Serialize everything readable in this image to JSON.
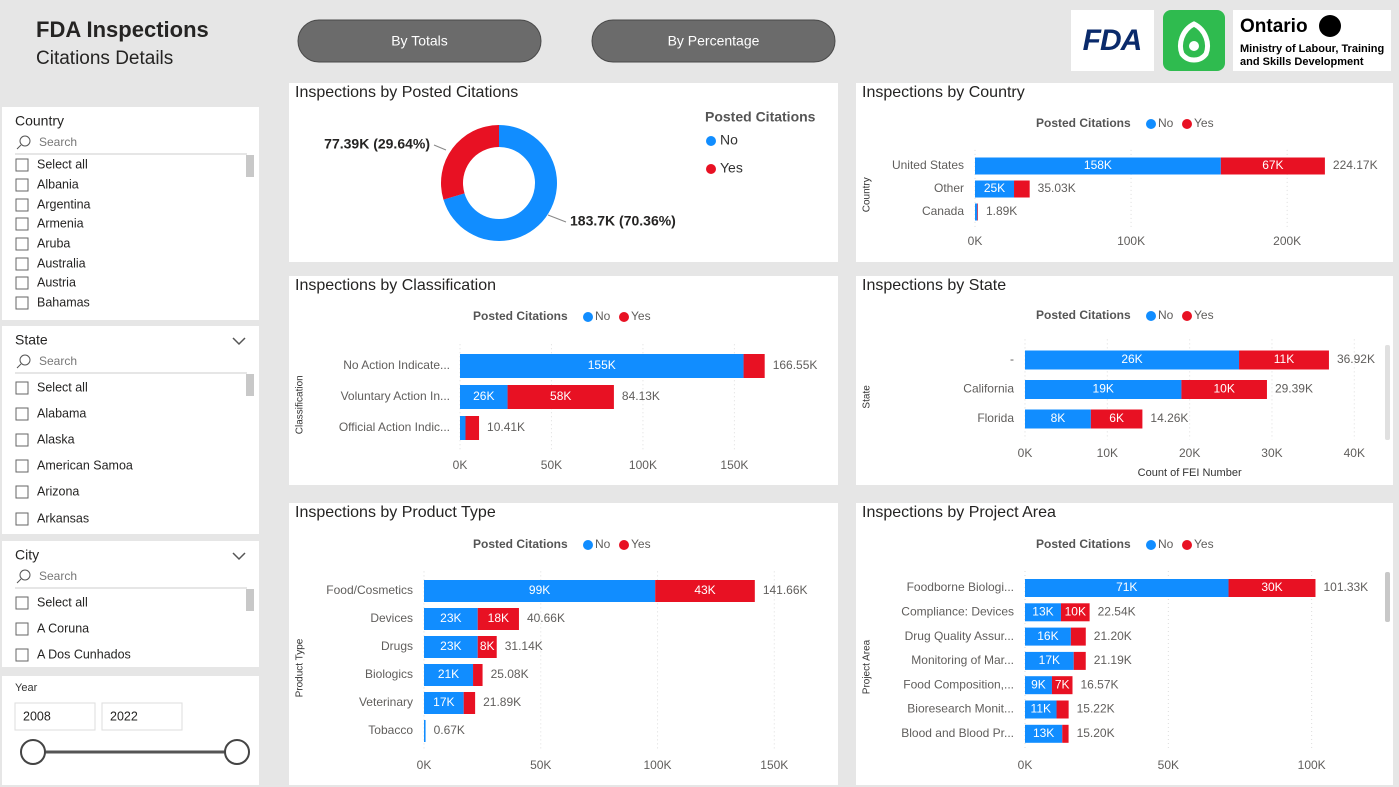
{
  "header": {
    "title": "FDA Inspections",
    "subtitle": "Citations Details"
  },
  "buttons": [
    "By Totals",
    "By Percentage"
  ],
  "logos": {
    "fda": "FDA",
    "ontario": "Ontario",
    "ministry": [
      "Ministry of Labour, Training",
      "and Skills Development"
    ]
  },
  "filters": {
    "country": {
      "label": "Country",
      "search": "Search",
      "items": [
        "Select all",
        "Albania",
        "Argentina",
        "Armenia",
        "Aruba",
        "Australia",
        "Austria",
        "Bahamas"
      ]
    },
    "state": {
      "label": "State",
      "search": "Search",
      "items": [
        "Select all",
        "Alabama",
        "Alaska",
        "American Samoa",
        "Arizona",
        "Arkansas"
      ]
    },
    "city": {
      "label": "City",
      "search": "Search",
      "items": [
        "Select all",
        "A Coruna",
        "A Dos Cunhados"
      ]
    },
    "year": {
      "label": "Year",
      "start": 2008,
      "end": 2022
    }
  },
  "charts": [
    {
      "type": "donut",
      "title": "Inspections by Posted Citations",
      "legend_title": "Posted Citations",
      "categories": [
        "No",
        "Yes"
      ],
      "colors": [
        "#118DFF",
        "#E81123"
      ],
      "values": [
        183700,
        77390
      ],
      "value_labels": [
        "183.7K (70.36%)",
        "77.39K (29.64%)"
      ]
    },
    {
      "type": "hbar_stacked",
      "title": "Inspections by Country",
      "legend_title": "Posted Citations",
      "y_label": "Country",
      "categories": [
        "United States",
        "Other",
        "Canada"
      ],
      "series": [
        {
          "name": "No",
          "color": "#118DFF",
          "values": [
            157500,
            25000,
            1500
          ],
          "value_labels": [
            "158K",
            "25K",
            null
          ]
        },
        {
          "name": "Yes",
          "color": "#E81123",
          "values": [
            66670,
            10030,
            390
          ],
          "value_labels": [
            "67K",
            null,
            null
          ]
        }
      ],
      "total_labels": [
        "224.17K",
        "35.03K",
        "1.89K"
      ],
      "xlim": [
        0,
        230000
      ],
      "xticks": [
        {
          "value": 0,
          "label": "0K"
        },
        {
          "value": 100000,
          "label": "100K"
        },
        {
          "value": 200000,
          "label": "200K"
        }
      ]
    },
    {
      "type": "hbar_stacked",
      "title": "Inspections by Classification",
      "legend_title": "Posted Citations",
      "y_label": "Classification",
      "categories": [
        "No Action Indicate...",
        "Voluntary Action In...",
        "Official Action Indic..."
      ],
      "series": [
        {
          "name": "No",
          "color": "#118DFF",
          "values": [
            155000,
            26000,
            3000
          ],
          "value_labels": [
            "155K",
            "26K",
            null
          ]
        },
        {
          "name": "Yes",
          "color": "#E81123",
          "values": [
            11550,
            58130,
            7410
          ],
          "value_labels": [
            null,
            "58K",
            null
          ]
        }
      ],
      "total_labels": [
        "166.55K",
        "84.13K",
        "10.41K"
      ],
      "xlim": [
        0,
        170000
      ],
      "xticks": [
        {
          "value": 0,
          "label": "0K"
        },
        {
          "value": 50000,
          "label": "50K"
        },
        {
          "value": 100000,
          "label": "100K"
        },
        {
          "value": 150000,
          "label": "150K"
        }
      ]
    },
    {
      "type": "hbar_stacked",
      "title": "Inspections by State",
      "legend_title": "Posted Citations",
      "y_label": "State",
      "x_label": "Count of FEI Number",
      "categories": [
        "-",
        "California",
        "Florida"
      ],
      "series": [
        {
          "name": "No",
          "color": "#118DFF",
          "values": [
            26000,
            19000,
            8000
          ],
          "value_labels": [
            "26K",
            "19K",
            "8K"
          ]
        },
        {
          "name": "Yes",
          "color": "#E81123",
          "values": [
            10920,
            10390,
            6260
          ],
          "value_labels": [
            "11K",
            "10K",
            "6K"
          ]
        }
      ],
      "total_labels": [
        "36.92K",
        "29.39K",
        "14.26K"
      ],
      "xlim": [
        0,
        43000
      ],
      "xticks": [
        {
          "value": 0,
          "label": "0K"
        },
        {
          "value": 10000,
          "label": "10K"
        },
        {
          "value": 20000,
          "label": "20K"
        },
        {
          "value": 30000,
          "label": "30K"
        },
        {
          "value": 40000,
          "label": "40K"
        }
      ]
    },
    {
      "type": "hbar_stacked",
      "title": "Inspections by Product Type",
      "legend_title": "Posted Citations",
      "y_label": "Product Type",
      "categories": [
        "Food/Cosmetics",
        "Devices",
        "Drugs",
        "Biologics",
        "Veterinary",
        "Tobacco"
      ],
      "series": [
        {
          "name": "No",
          "color": "#118DFF",
          "values": [
            99000,
            23000,
            23000,
            21000,
            17000,
            670
          ],
          "value_labels": [
            "99K",
            "23K",
            "23K",
            "21K",
            "17K",
            null
          ]
        },
        {
          "name": "Yes",
          "color": "#E81123",
          "values": [
            42660,
            17660,
            8140,
            4080,
            4890,
            0
          ],
          "value_labels": [
            "43K",
            "18K",
            "8K",
            null,
            null,
            null
          ]
        }
      ],
      "total_labels": [
        "141.66K",
        "40.66K",
        "31.14K",
        "25.08K",
        "21.89K",
        "0.67K"
      ],
      "xlim": [
        0,
        170000
      ],
      "xticks": [
        {
          "value": 0,
          "label": "0K"
        },
        {
          "value": 50000,
          "label": "50K"
        },
        {
          "value": 100000,
          "label": "100K"
        },
        {
          "value": 150000,
          "label": "150K"
        }
      ]
    },
    {
      "type": "hbar_stacked",
      "title": "Inspections by Project Area",
      "legend_title": "Posted Citations",
      "y_label": "Project Area",
      "categories": [
        "Foodborne Biologi...",
        "Compliance: Devices",
        "Drug Quality Assur...",
        "Monitoring of Mar...",
        "Food Composition,...",
        "Bioresearch Monit...",
        "Blood and Blood Pr..."
      ],
      "series": [
        {
          "name": "No",
          "color": "#118DFF",
          "values": [
            71000,
            12540,
            16000,
            17000,
            9400,
            11000,
            13000
          ],
          "value_labels": [
            "71K",
            "13K",
            "16K",
            "17K",
            "9K",
            "11K",
            "13K"
          ]
        },
        {
          "name": "Yes",
          "color": "#E81123",
          "values": [
            30330,
            10000,
            5200,
            4190,
            7170,
            4220,
            2200
          ],
          "value_labels": [
            "30K",
            "10K",
            null,
            null,
            "7K",
            null,
            null
          ]
        }
      ],
      "total_labels": [
        "101.33K",
        "22.54K",
        "21.20K",
        "21.19K",
        "16.57K",
        "15.22K",
        "15.20K"
      ],
      "xlim": [
        0,
        120000
      ],
      "xticks": [
        {
          "value": 0,
          "label": "0K"
        },
        {
          "value": 50000,
          "label": "50K"
        },
        {
          "value": 100000,
          "label": "100K"
        }
      ]
    }
  ]
}
